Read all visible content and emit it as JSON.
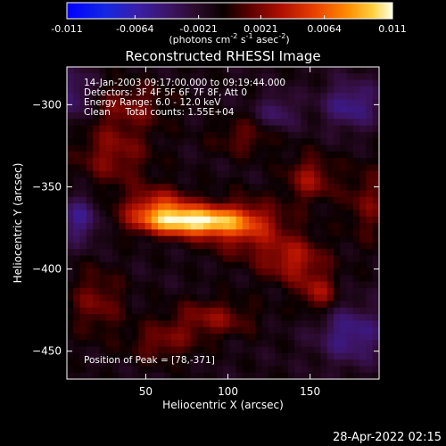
{
  "chart_data": {
    "type": "heatmap",
    "title": "Reconstructed RHESSI Image",
    "xlabel": "Heliocentric X (arcsec)",
    "ylabel": "Heliocentric Y (arcsec)",
    "xlim": [
      2,
      192
    ],
    "ylim": [
      -467,
      -277
    ],
    "x_ticks": [
      50,
      100,
      150
    ],
    "y_ticks": [
      -300,
      -350,
      -400,
      -450
    ],
    "info_lines": [
      "14-Jan-2003 09:17:00.000 to 09:19:44.000",
      "Detectors: 3F 4F 5F 6F 7F 8F, Att 0",
      "Energy Range: 6.0 - 12.0 keV",
      "Clean     Total counts: 1.55E+04"
    ],
    "peak_label": "Position of Peak = [78,-371]",
    "peak": {
      "x": 78,
      "y": -371
    },
    "colorbar": {
      "range": [
        -0.011,
        0.011
      ],
      "tick_values": [
        -0.011,
        -0.0064,
        -0.0021,
        0.0021,
        0.0064,
        0.011
      ],
      "tick_labels": [
        "-0.011",
        "-0.0064",
        "-0.0021",
        "0.0021",
        "0.0064",
        "0.011"
      ],
      "unit_main": "(photons cm",
      "unit_exp1": "-2",
      "unit_mid": " s",
      "unit_exp2": "-1",
      "unit_mid2": " asec",
      "unit_exp3": "-2",
      "unit_end": ")"
    },
    "sources": [
      {
        "x": 78,
        "y": -371,
        "sx": 22,
        "sy": 6,
        "amp": 0.011
      },
      {
        "x": 58,
        "y": -362,
        "sx": 14,
        "sy": 8,
        "amp": 0.0055
      },
      {
        "x": 110,
        "y": -375,
        "sx": 18,
        "sy": 12,
        "amp": 0.0045
      },
      {
        "x": 30,
        "y": -330,
        "sx": 16,
        "sy": 14,
        "amp": 0.0035
      },
      {
        "x": 40,
        "y": -300,
        "sx": 18,
        "sy": 10,
        "amp": 0.0028
      },
      {
        "x": 150,
        "y": -345,
        "sx": 10,
        "sy": 10,
        "amp": 0.004
      },
      {
        "x": 140,
        "y": -395,
        "sx": 14,
        "sy": 10,
        "amp": 0.0045
      },
      {
        "x": 155,
        "y": -415,
        "sx": 8,
        "sy": 8,
        "amp": 0.004
      },
      {
        "x": 90,
        "y": -430,
        "sx": 18,
        "sy": 8,
        "amp": 0.0035
      },
      {
        "x": 20,
        "y": -420,
        "sx": 12,
        "sy": 14,
        "amp": 0.003
      },
      {
        "x": 185,
        "y": -360,
        "sx": 10,
        "sy": 16,
        "amp": 0.0028
      },
      {
        "x": 110,
        "y": -320,
        "sx": 14,
        "sy": 8,
        "amp": 0.0025
      },
      {
        "x": 60,
        "y": -445,
        "sx": 14,
        "sy": 8,
        "amp": 0.003
      },
      {
        "x": 175,
        "y": -300,
        "sx": 12,
        "sy": 10,
        "amp": -0.004
      },
      {
        "x": 10,
        "y": -370,
        "sx": 8,
        "sy": 10,
        "amp": -0.004
      },
      {
        "x": 175,
        "y": -440,
        "sx": 14,
        "sy": 12,
        "amp": -0.004
      },
      {
        "x": 130,
        "y": -305,
        "sx": 8,
        "sy": 8,
        "amp": -0.003
      },
      {
        "x": 5,
        "y": -295,
        "sx": 10,
        "sy": 12,
        "amp": -0.0035
      }
    ]
  },
  "footer_timestamp": "28-Apr-2022 02:15"
}
